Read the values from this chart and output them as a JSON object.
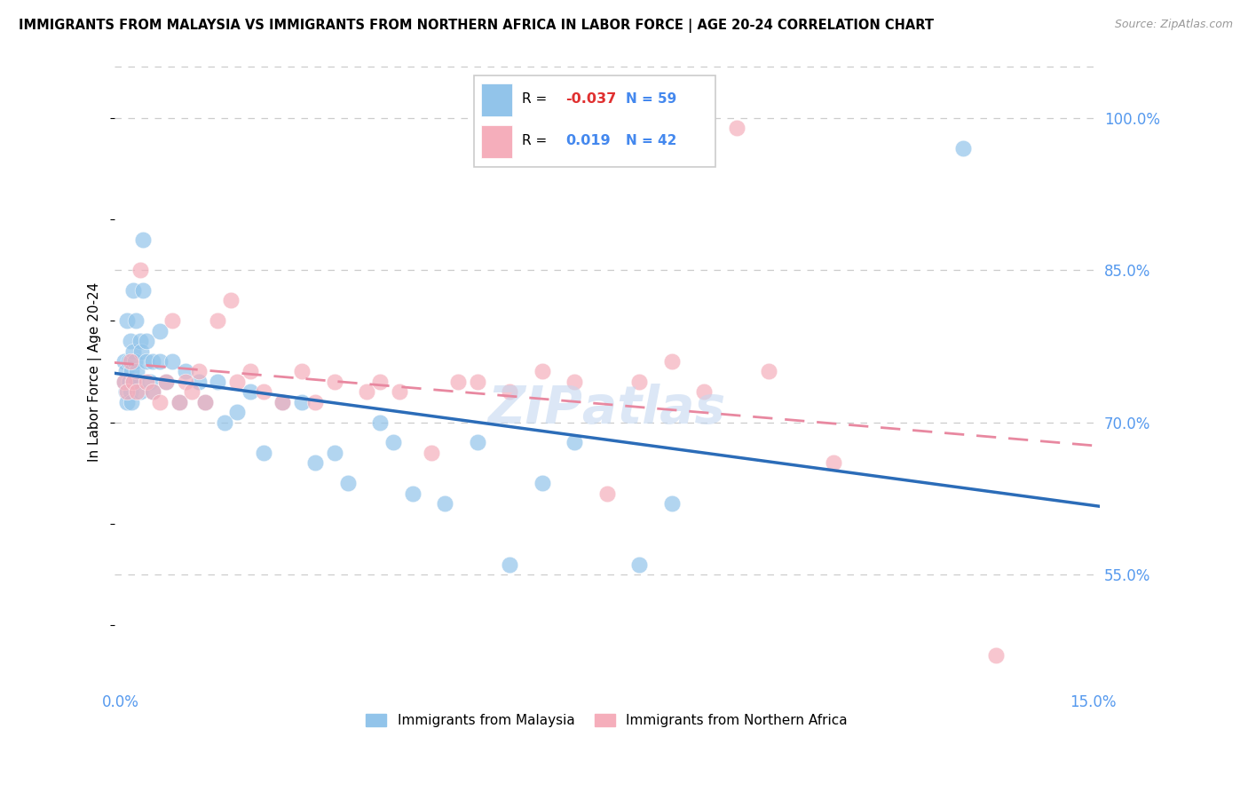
{
  "title": "IMMIGRANTS FROM MALAYSIA VS IMMIGRANTS FROM NORTHERN AFRICA IN LABOR FORCE | AGE 20-24 CORRELATION CHART",
  "source": "Source: ZipAtlas.com",
  "ylabel": "In Labor Force | Age 20-24",
  "xlim": [
    -0.001,
    0.151
  ],
  "ylim": [
    0.44,
    1.06
  ],
  "malaysia_color": "#92C4EA",
  "northern_africa_color": "#F5AEBB",
  "malaysia_line_color": "#2B6CB8",
  "northern_africa_line_color": "#E888A0",
  "malaysia_R": "-0.037",
  "malaysia_N": "59",
  "northern_africa_R": "0.019",
  "northern_africa_N": "42",
  "ytick_vals": [
    0.55,
    0.7,
    0.85,
    1.0
  ],
  "ytick_labels": [
    "55.0%",
    "70.0%",
    "85.0%",
    "100.0%"
  ],
  "xtick_vals": [
    0.0,
    0.15
  ],
  "xtick_labels": [
    "0.0%",
    "15.0%"
  ],
  "malaysia_x": [
    0.0005,
    0.0006,
    0.0008,
    0.0009,
    0.001,
    0.001,
    0.0012,
    0.0013,
    0.0014,
    0.0015,
    0.0015,
    0.0016,
    0.0017,
    0.0018,
    0.002,
    0.002,
    0.0022,
    0.0023,
    0.0024,
    0.0025,
    0.003,
    0.003,
    0.0032,
    0.0034,
    0.0035,
    0.004,
    0.004,
    0.0045,
    0.005,
    0.005,
    0.006,
    0.006,
    0.007,
    0.008,
    0.009,
    0.01,
    0.012,
    0.013,
    0.015,
    0.016,
    0.018,
    0.02,
    0.022,
    0.025,
    0.028,
    0.03,
    0.033,
    0.035,
    0.04,
    0.042,
    0.045,
    0.05,
    0.055,
    0.06,
    0.065,
    0.07,
    0.08,
    0.085,
    0.13
  ],
  "malaysia_y": [
    0.74,
    0.76,
    0.73,
    0.75,
    0.72,
    0.8,
    0.74,
    0.76,
    0.74,
    0.73,
    0.78,
    0.75,
    0.72,
    0.74,
    0.77,
    0.83,
    0.76,
    0.74,
    0.8,
    0.75,
    0.73,
    0.78,
    0.77,
    0.83,
    0.88,
    0.76,
    0.78,
    0.74,
    0.73,
    0.76,
    0.76,
    0.79,
    0.74,
    0.76,
    0.72,
    0.75,
    0.74,
    0.72,
    0.74,
    0.7,
    0.71,
    0.73,
    0.67,
    0.72,
    0.72,
    0.66,
    0.67,
    0.64,
    0.7,
    0.68,
    0.63,
    0.62,
    0.68,
    0.56,
    0.64,
    0.68,
    0.56,
    0.62,
    0.97
  ],
  "northern_africa_x": [
    0.0005,
    0.001,
    0.0015,
    0.002,
    0.0025,
    0.003,
    0.004,
    0.005,
    0.006,
    0.007,
    0.008,
    0.009,
    0.01,
    0.011,
    0.012,
    0.013,
    0.015,
    0.017,
    0.018,
    0.02,
    0.022,
    0.025,
    0.028,
    0.03,
    0.033,
    0.038,
    0.04,
    0.043,
    0.048,
    0.052,
    0.055,
    0.06,
    0.065,
    0.07,
    0.075,
    0.08,
    0.085,
    0.09,
    0.095,
    0.1,
    0.11,
    0.135
  ],
  "northern_africa_y": [
    0.74,
    0.73,
    0.76,
    0.74,
    0.73,
    0.85,
    0.74,
    0.73,
    0.72,
    0.74,
    0.8,
    0.72,
    0.74,
    0.73,
    0.75,
    0.72,
    0.8,
    0.82,
    0.74,
    0.75,
    0.73,
    0.72,
    0.75,
    0.72,
    0.74,
    0.73,
    0.74,
    0.73,
    0.67,
    0.74,
    0.74,
    0.73,
    0.75,
    0.74,
    0.63,
    0.74,
    0.76,
    0.73,
    0.99,
    0.75,
    0.66,
    0.47
  ]
}
